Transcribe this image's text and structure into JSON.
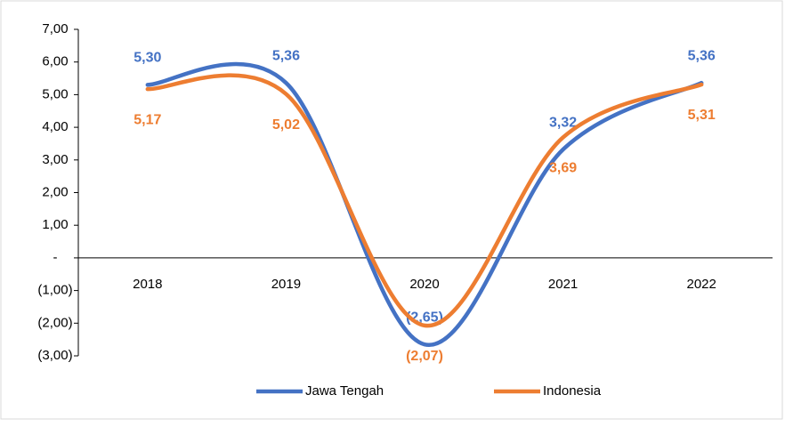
{
  "chart_data": {
    "type": "line",
    "categories": [
      "2018",
      "2019",
      "2020",
      "2021",
      "2022"
    ],
    "series": [
      {
        "name": "Jawa Tengah",
        "color": "#4472c4",
        "values": [
          5.3,
          5.36,
          -2.65,
          3.32,
          5.36
        ],
        "value_labels": [
          "5,30",
          "5,36",
          "(2,65)",
          "3,32",
          "5,36"
        ]
      },
      {
        "name": "Indonesia",
        "color": "#ed7d31",
        "values": [
          5.17,
          5.02,
          -2.07,
          3.69,
          5.31
        ],
        "value_labels": [
          "5,17",
          "5,02",
          "(2,07)",
          "3,69",
          "5,31"
        ]
      }
    ],
    "ylim": [
      -3,
      7
    ],
    "yticks": [
      {
        "value": 7,
        "label": "7,00"
      },
      {
        "value": 6,
        "label": "6,00"
      },
      {
        "value": 5,
        "label": "5,00"
      },
      {
        "value": 4,
        "label": "4,00"
      },
      {
        "value": 3,
        "label": "3,00"
      },
      {
        "value": 2,
        "label": "2,00"
      },
      {
        "value": 1,
        "label": "1,00"
      },
      {
        "value": 0,
        "label": "-"
      },
      {
        "value": -1,
        "label": "(1,00)"
      },
      {
        "value": -2,
        "label": "(2,00)"
      },
      {
        "value": -3,
        "label": "(3,00)"
      }
    ],
    "smooth": true,
    "grid": false,
    "legend": "bottom"
  }
}
